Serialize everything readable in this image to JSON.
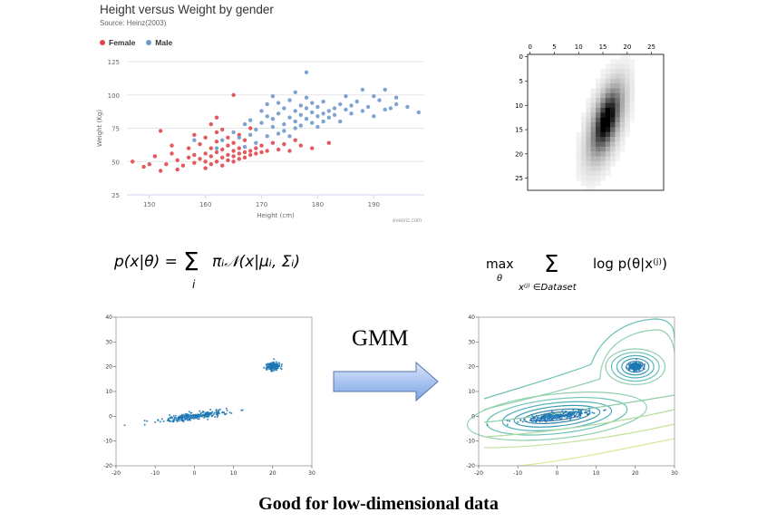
{
  "scatter": {
    "title": "Height versus Weight by gender",
    "source": "Source: Heinz(2003)",
    "legend": [
      {
        "label": "Female",
        "color": "#e0474c"
      },
      {
        "label": "Male",
        "color": "#7199cc"
      }
    ],
    "credit": "everviz.com"
  },
  "formulas": {
    "mixture": "p(x|θ) = Σ_i π_i N(x|μ_i, Σ_i)",
    "objective": "max_θ Σ_{x^(j) ∈ Dataset} log p(θ|x^(j))"
  },
  "arrow_label": "GMM",
  "footer": "Good for low-dimensional data",
  "chart_data": [
    {
      "type": "scatter",
      "title": "Height versus Weight by gender",
      "xlabel": "Height (cm)",
      "ylabel": "Weight (Kg)",
      "xticks": [
        150,
        160,
        170,
        180,
        190
      ],
      "yticks": [
        25,
        50,
        75,
        100,
        125
      ],
      "xlim": [
        146,
        199
      ],
      "ylim": [
        25,
        125
      ],
      "series": [
        {
          "name": "Female",
          "color": "#e0474c",
          "points": [
            [
              147,
              50
            ],
            [
              149,
              46
            ],
            [
              150,
              48
            ],
            [
              151,
              54
            ],
            [
              152,
              73
            ],
            [
              152,
              43
            ],
            [
              153,
              48
            ],
            [
              154,
              56
            ],
            [
              154,
              62
            ],
            [
              155,
              44
            ],
            [
              155,
              51
            ],
            [
              156,
              47
            ],
            [
              157,
              53
            ],
            [
              157,
              60
            ],
            [
              158,
              55
            ],
            [
              158,
              49
            ],
            [
              158,
              70
            ],
            [
              159,
              52
            ],
            [
              159,
              63
            ],
            [
              160,
              45
            ],
            [
              160,
              50
            ],
            [
              160,
              56
            ],
            [
              160,
              68
            ],
            [
              161,
              48
            ],
            [
              161,
              54
            ],
            [
              161,
              60
            ],
            [
              161,
              78
            ],
            [
              162,
              50
            ],
            [
              162,
              57
            ],
            [
              162,
              65
            ],
            [
              162,
              72
            ],
            [
              162,
              83
            ],
            [
              163,
              47
            ],
            [
              163,
              53
            ],
            [
              163,
              59
            ],
            [
              163,
              74
            ],
            [
              164,
              51
            ],
            [
              164,
              55
            ],
            [
              164,
              62
            ],
            [
              164,
              68
            ],
            [
              165,
              50
            ],
            [
              165,
              54
            ],
            [
              165,
              58
            ],
            [
              165,
              64
            ],
            [
              165,
              100
            ],
            [
              166,
              52
            ],
            [
              166,
              56
            ],
            [
              166,
              60
            ],
            [
              166,
              70
            ],
            [
              167,
              53
            ],
            [
              167,
              57
            ],
            [
              167,
              66
            ],
            [
              168,
              55
            ],
            [
              168,
              58
            ],
            [
              168,
              75
            ],
            [
              169,
              56
            ],
            [
              169,
              60
            ],
            [
              170,
              57
            ],
            [
              170,
              62
            ],
            [
              171,
              58
            ],
            [
              172,
              64
            ],
            [
              173,
              59
            ],
            [
              174,
              63
            ],
            [
              175,
              58
            ],
            [
              176,
              66
            ],
            [
              177,
              62
            ],
            [
              179,
              60
            ],
            [
              182,
              64
            ]
          ]
        },
        {
          "name": "Male",
          "color": "#7199cc",
          "points": [
            [
              158,
              66
            ],
            [
              162,
              60
            ],
            [
              163,
              66
            ],
            [
              165,
              72
            ],
            [
              166,
              68
            ],
            [
              167,
              61
            ],
            [
              167,
              78
            ],
            [
              168,
              70
            ],
            [
              168,
              81
            ],
            [
              169,
              74
            ],
            [
              169,
              64
            ],
            [
              170,
              79
            ],
            [
              170,
              88
            ],
            [
              171,
              69
            ],
            [
              171,
              84
            ],
            [
              171,
              93
            ],
            [
              172,
              76
            ],
            [
              172,
              82
            ],
            [
              172,
              99
            ],
            [
              173,
              71
            ],
            [
              173,
              86
            ],
            [
              173,
              94
            ],
            [
              174,
              78
            ],
            [
              174,
              90
            ],
            [
              174,
              73
            ],
            [
              175,
              83
            ],
            [
              175,
              96
            ],
            [
              175,
              69
            ],
            [
              176,
              80
            ],
            [
              176,
              88
            ],
            [
              176,
              102
            ],
            [
              176,
              75
            ],
            [
              177,
              85
            ],
            [
              177,
              92
            ],
            [
              177,
              77
            ],
            [
              178,
              82
            ],
            [
              178,
              90
            ],
            [
              178,
              98
            ],
            [
              178,
              117
            ],
            [
              179,
              79
            ],
            [
              179,
              87
            ],
            [
              179,
              94
            ],
            [
              180,
              84
            ],
            [
              180,
              91
            ],
            [
              180,
              76
            ],
            [
              181,
              86
            ],
            [
              181,
              95
            ],
            [
              181,
              80
            ],
            [
              182,
              88
            ],
            [
              182,
              83
            ],
            [
              183,
              90
            ],
            [
              183,
              85
            ],
            [
              184,
              93
            ],
            [
              184,
              80
            ],
            [
              185,
              89
            ],
            [
              185,
              99
            ],
            [
              186,
              86
            ],
            [
              186,
              92
            ],
            [
              187,
              95
            ],
            [
              188,
              88
            ],
            [
              188,
              104
            ],
            [
              189,
              91
            ],
            [
              190,
              99
            ],
            [
              190,
              84
            ],
            [
              191,
              96
            ],
            [
              192,
              89
            ],
            [
              192,
              104
            ],
            [
              193,
              90
            ],
            [
              194,
              98
            ],
            [
              194,
              93
            ],
            [
              196,
              91
            ],
            [
              198,
              87
            ]
          ]
        }
      ]
    },
    {
      "type": "heatmap",
      "title": "",
      "xticks": [
        0,
        5,
        10,
        15,
        20,
        25
      ],
      "yticks": [
        0,
        5,
        10,
        15,
        20,
        25
      ],
      "xlim": [
        0,
        28
      ],
      "ylim": [
        0,
        28
      ]
    },
    {
      "type": "scatter",
      "title": "",
      "xticks": [
        -20,
        -10,
        0,
        10,
        20,
        30
      ],
      "yticks": [
        -20,
        -10,
        0,
        10,
        20,
        30,
        40
      ],
      "xlim": [
        -20,
        30
      ],
      "ylim": [
        -20,
        40
      ],
      "clusters": [
        {
          "center": [
            0,
            0
          ],
          "spread": [
            4.5,
            0.7
          ],
          "tilt": 0.2,
          "count": 260
        },
        {
          "center": [
            20,
            20
          ],
          "spread": [
            0.9,
            0.9
          ],
          "tilt": 0,
          "count": 160
        }
      ]
    },
    {
      "type": "scatter",
      "title": "",
      "xticks": [
        -20,
        -10,
        0,
        10,
        20,
        30
      ],
      "yticks": [
        -20,
        -10,
        0,
        10,
        20,
        30,
        40
      ],
      "xlim": [
        -20,
        30
      ],
      "ylim": [
        -20,
        40
      ],
      "clusters": [
        {
          "center": [
            0,
            0
          ],
          "spread": [
            4.5,
            0.7
          ],
          "tilt": 0.2,
          "count": 260
        },
        {
          "center": [
            20,
            20
          ],
          "spread": [
            0.9,
            0.9
          ],
          "tilt": 0,
          "count": 160
        }
      ],
      "contours": true
    }
  ]
}
